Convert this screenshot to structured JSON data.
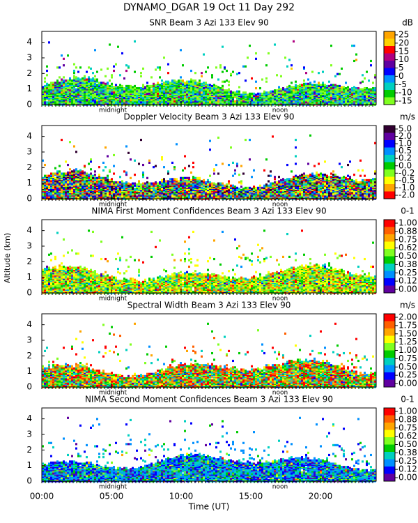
{
  "title": "DYNAMO_DGAR  19 Oct 11 Day 292",
  "xlabel": "Time (UT)",
  "ylabel": "Altitude (km)",
  "x_axis": {
    "xlim": [
      0,
      24
    ],
    "xticks": [
      {
        "value": 0,
        "label": "00:00"
      },
      {
        "value": 5,
        "label": "05:00"
      },
      {
        "value": 10,
        "label": "10:00"
      },
      {
        "value": 15,
        "label": "15:00"
      },
      {
        "value": 20,
        "label": "20:00"
      }
    ],
    "annotations": [
      {
        "text": "midnight",
        "x": 5.1
      },
      {
        "text": "noon",
        "x": 17.1
      }
    ]
  },
  "chart_data": [
    {
      "type": "heatmap",
      "title": "SNR Beam 3 Azi 133 Elev 90",
      "ylim": [
        0,
        4.7
      ],
      "yticks": [
        0,
        1,
        2,
        3,
        4
      ],
      "colorbar": {
        "unit": "dB",
        "ticks": [
          25,
          20,
          15,
          10,
          5,
          0,
          -5,
          -10,
          -15
        ],
        "colors": [
          "#ffa500",
          "#ffd000",
          "#ff0000",
          "#b00080",
          "#6000a0",
          "#0000ff",
          "#0090ff",
          "#00d0c0",
          "#00cc00",
          "#80ff20"
        ]
      }
    },
    {
      "type": "heatmap",
      "title": "Doppler Velocity Beam 3 Azi 133 Elev 90",
      "ylim": [
        0,
        4.7
      ],
      "yticks": [
        0,
        1,
        2,
        3,
        4
      ],
      "colorbar": {
        "unit": "m/s",
        "ticks": [
          {
            "value": 5,
            "label": "5.0"
          },
          {
            "value": 2,
            "label": "2.0"
          },
          {
            "value": 1,
            "label": "1.0"
          },
          0.5,
          0.2,
          {
            "value": 0,
            "label": "0.0"
          },
          -0.2,
          -0.5,
          {
            "value": -1,
            "label": "-1.0"
          },
          {
            "value": -2,
            "label": "-2.0"
          }
        ],
        "colors": [
          "#300030",
          "#6000a0",
          "#0000ff",
          "#0090ff",
          "#00d0c0",
          "#00cc00",
          "#80ff20",
          "#ffff00",
          "#ffa500",
          "#ff0000"
        ]
      }
    },
    {
      "type": "heatmap",
      "title": "NIMA First Moment Confidences Beam 3 Azi 133 Elev 90",
      "ylim": [
        0,
        4.7
      ],
      "yticks": [
        0,
        1,
        2,
        3,
        4
      ],
      "colorbar": {
        "unit": "0-1",
        "ticks": [
          {
            "value": 1,
            "label": "1.00"
          },
          0.88,
          0.75,
          0.62,
          {
            "value": 0.5,
            "label": "0.50"
          },
          0.38,
          0.25,
          0.12,
          {
            "value": 0,
            "label": "0.00"
          }
        ],
        "colors": [
          "#ff0000",
          "#ff6000",
          "#ffa500",
          "#ffff00",
          "#80ff20",
          "#00cc00",
          "#00d0c0",
          "#0090ff",
          "#0000ff",
          "#6000a0"
        ]
      }
    },
    {
      "type": "heatmap",
      "title": "Spectral Width Beam 3 Azi 133 Elev 90",
      "ylim": [
        0,
        4.7
      ],
      "yticks": [
        0,
        1,
        2,
        3,
        4
      ],
      "colorbar": {
        "unit": "m/s",
        "ticks": [
          {
            "value": 2,
            "label": "2.00"
          },
          1.75,
          {
            "value": 1.5,
            "label": "1.50"
          },
          1.25,
          {
            "value": 1,
            "label": "1.00"
          },
          0.75,
          {
            "value": 0.5,
            "label": "0.50"
          },
          0.25,
          {
            "value": 0,
            "label": "0.00"
          }
        ],
        "colors": [
          "#ff0000",
          "#ff6000",
          "#ffa500",
          "#ffff00",
          "#80ff20",
          "#00cc00",
          "#00d0c0",
          "#0090ff",
          "#0000ff",
          "#6000a0"
        ]
      }
    },
    {
      "type": "heatmap",
      "title": "NIMA Second Moment Confidences Beam 3 Azi 133 Elev 90",
      "ylim": [
        0,
        4.7
      ],
      "yticks": [
        0,
        1,
        2,
        3,
        4
      ],
      "colorbar": {
        "unit": "0-1",
        "ticks": [
          {
            "value": 1,
            "label": "1.00"
          },
          0.88,
          0.75,
          0.62,
          {
            "value": 0.5,
            "label": "0.50"
          },
          0.38,
          0.25,
          0.12,
          {
            "value": 0,
            "label": "0.00"
          }
        ],
        "colors": [
          "#ff0000",
          "#ff6000",
          "#ffa500",
          "#ffff00",
          "#80ff20",
          "#00cc00",
          "#00d0c0",
          "#0090ff",
          "#0000ff",
          "#6000a0"
        ]
      }
    }
  ]
}
